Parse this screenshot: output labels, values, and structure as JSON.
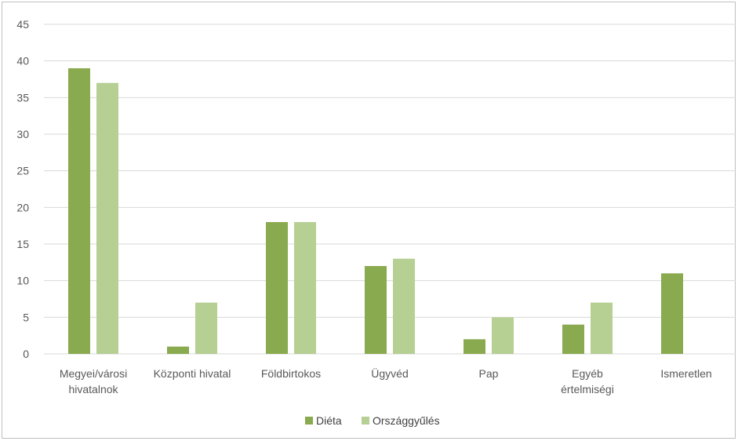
{
  "chart_data": {
    "type": "bar",
    "title": "",
    "xlabel": "",
    "ylabel": "",
    "categories": [
      [
        "Megyei/városi",
        "hivatalnok"
      ],
      [
        "Központi hivatal"
      ],
      [
        "Földbirtokos"
      ],
      [
        "Ügyvéd"
      ],
      [
        "Pap"
      ],
      [
        "Egyéb",
        "értelmiségi"
      ],
      [
        "Ismeretlen"
      ]
    ],
    "series": [
      {
        "name": "Diéta",
        "color": "#8aaa4f",
        "values": [
          39,
          1,
          18,
          12,
          2,
          4,
          11
        ]
      },
      {
        "name": "Országgyűlés",
        "color": "#b6cf93",
        "values": [
          37,
          7,
          18,
          13,
          5,
          7,
          0
        ]
      }
    ],
    "ylim": [
      0,
      45
    ],
    "yticks": [
      0,
      5,
      10,
      15,
      20,
      25,
      30,
      35,
      40,
      45
    ],
    "grid": true,
    "gridColor": "#d9d9d9",
    "legend_position": "bottom"
  }
}
